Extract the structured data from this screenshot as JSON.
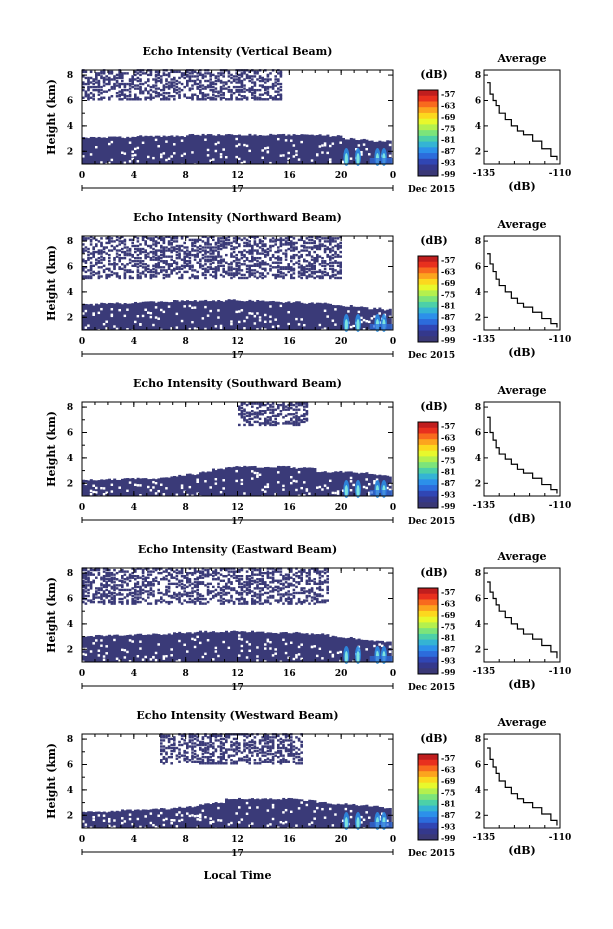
{
  "colorbar": {
    "unit": "(dB)",
    "labels": [
      "-57",
      "-63",
      "-69",
      "-75",
      "-81",
      "-87",
      "-93",
      "-99"
    ],
    "colors": [
      "#c01e1e",
      "#e8301e",
      "#f86a1e",
      "#fca41e",
      "#fcd81e",
      "#e8f82c",
      "#b4f04e",
      "#7ce47a",
      "#4cd0a8",
      "#34b4d4",
      "#2c90ea",
      "#2c6cdc",
      "#3046b4",
      "#34388c",
      "#3a3876"
    ]
  },
  "bg_color": "#3a3a78",
  "x_axis": {
    "ticks": [
      "0",
      "4",
      "8",
      "12",
      "16",
      "20",
      "0"
    ],
    "date_label": "17",
    "month_label": "Dec 2015",
    "xlabel": "Local Time"
  },
  "heatmap_y_ticks": [
    "2",
    "4",
    "6",
    "8"
  ],
  "heatmap_ylabel": "Height (km)",
  "panels": [
    {
      "title": "Echo Intensity (Vertical Beam)",
      "avg": {
        "title": "Average",
        "xlabel": "(dB)",
        "x_ticks": [
          "-135",
          "-110"
        ],
        "y_ticks": [
          "2",
          "4",
          "6",
          "8"
        ]
      }
    },
    {
      "title": "Echo Intensity (Northward Beam)",
      "avg": {
        "title": "Average",
        "xlabel": "(dB)",
        "x_ticks": [
          "-135",
          "-110"
        ],
        "y_ticks": [
          "2",
          "4",
          "6",
          "8"
        ]
      }
    },
    {
      "title": "Echo Intensity (Southward Beam)",
      "avg": {
        "title": "Average",
        "xlabel": "(dB)",
        "x_ticks": [
          "-135",
          "-110"
        ],
        "y_ticks": [
          "2",
          "4",
          "6",
          "8"
        ]
      }
    },
    {
      "title": "Echo Intensity (Eastward Beam)",
      "avg": {
        "title": "Average",
        "xlabel": "(dB)",
        "x_ticks": [
          "-135",
          "-110"
        ],
        "y_ticks": [
          "2",
          "4",
          "6",
          "8"
        ]
      }
    },
    {
      "title": "Echo Intensity (Westward Beam)",
      "avg": {
        "title": "Average",
        "xlabel": "(dB)",
        "x_ticks": [
          "-135",
          "-110"
        ],
        "y_ticks": [
          "2",
          "4",
          "6",
          "8"
        ]
      }
    }
  ],
  "chart_data": [
    {
      "type": "heatmap",
      "title": "Echo Intensity (Vertical Beam)",
      "xlabel": "",
      "ylabel": "Height (km)",
      "xlim": [
        0,
        24
      ],
      "ylim": [
        1,
        8.4
      ],
      "echo_top_km": [
        3.1,
        3.1,
        3.1,
        3.1,
        3.2,
        3.2,
        3.2,
        3.2,
        3.3,
        3.3,
        3.3,
        3.3,
        3.3,
        3.3,
        3.3,
        3.3,
        3.3,
        3.3,
        3.3,
        3.2,
        3.0,
        2.9,
        2.8,
        2.8
      ],
      "upper_band_km": [
        6.0,
        8.4
      ],
      "upper_band_hours": [
        0,
        15.5
      ]
    },
    {
      "type": "line",
      "title": "Average",
      "xlabel": "(dB)",
      "ylabel": "",
      "xlim": [
        -135,
        -110
      ],
      "ylim": [
        1,
        8.4
      ],
      "x": [
        -134,
        -133,
        -132,
        -131,
        -130,
        -128,
        -126,
        -124,
        -122,
        -119,
        -116,
        -113,
        -111
      ],
      "y": [
        7.4,
        6.5,
        6.0,
        5.6,
        5.0,
        4.5,
        4.0,
        3.6,
        3.3,
        2.8,
        2.2,
        1.6,
        1.3
      ]
    },
    {
      "type": "heatmap",
      "title": "Echo Intensity (Northward Beam)",
      "xlabel": "",
      "ylabel": "Height (km)",
      "xlim": [
        0,
        24
      ],
      "ylim": [
        1,
        8.4
      ],
      "echo_top_km": [
        3.0,
        3.1,
        3.1,
        3.1,
        3.2,
        3.2,
        3.2,
        3.3,
        3.3,
        3.3,
        3.3,
        3.4,
        3.3,
        3.3,
        3.3,
        3.2,
        3.2,
        3.1,
        3.1,
        3.0,
        2.9,
        2.8,
        2.7,
        2.6
      ],
      "upper_band_km": [
        5.0,
        8.4
      ],
      "upper_band_hours": [
        0,
        20
      ]
    },
    {
      "type": "line",
      "title": "Average",
      "xlabel": "(dB)",
      "ylabel": "",
      "xlim": [
        -135,
        -110
      ],
      "ylim": [
        1,
        8.4
      ],
      "x": [
        -134,
        -133,
        -132,
        -131,
        -130,
        -128,
        -126,
        -124,
        -122,
        -119,
        -116,
        -113,
        -111
      ],
      "y": [
        7.0,
        6.2,
        5.6,
        5.0,
        4.5,
        4.0,
        3.5,
        3.1,
        2.8,
        2.4,
        1.9,
        1.5,
        1.2
      ]
    },
    {
      "type": "heatmap",
      "title": "Echo Intensity (Southward Beam)",
      "xlabel": "",
      "ylabel": "Height (km)",
      "xlim": [
        0,
        24
      ],
      "ylim": [
        1,
        8.4
      ],
      "echo_top_km": [
        2.3,
        2.3,
        2.3,
        2.4,
        2.4,
        2.4,
        2.5,
        2.6,
        2.7,
        2.9,
        3.1,
        3.3,
        3.3,
        3.3,
        3.3,
        3.3,
        3.2,
        3.2,
        2.9,
        2.9,
        2.9,
        2.8,
        2.7,
        2.6
      ],
      "upper_band_km": [
        6.5,
        8.4
      ],
      "upper_band_hours": [
        12,
        17.5
      ]
    },
    {
      "type": "line",
      "title": "Average",
      "xlabel": "(dB)",
      "ylabel": "",
      "xlim": [
        -135,
        -110
      ],
      "ylim": [
        1,
        8.4
      ],
      "x": [
        -134,
        -133,
        -132,
        -131,
        -130,
        -128,
        -126,
        -124,
        -122,
        -119,
        -116,
        -113,
        -111
      ],
      "y": [
        7.2,
        6.0,
        5.4,
        4.8,
        4.3,
        3.9,
        3.5,
        3.1,
        2.8,
        2.4,
        1.9,
        1.5,
        1.2
      ]
    },
    {
      "type": "heatmap",
      "title": "Echo Intensity (Eastward Beam)",
      "xlabel": "",
      "ylabel": "Height (km)",
      "xlim": [
        0,
        24
      ],
      "ylim": [
        1,
        8.4
      ],
      "echo_top_km": [
        3.0,
        3.1,
        3.1,
        3.1,
        3.2,
        3.2,
        3.2,
        3.3,
        3.3,
        3.4,
        3.4,
        3.4,
        3.4,
        3.4,
        3.3,
        3.3,
        3.3,
        3.2,
        3.2,
        3.0,
        2.9,
        2.8,
        2.7,
        2.6
      ],
      "upper_band_km": [
        5.5,
        8.4
      ],
      "upper_band_hours": [
        0,
        19
      ]
    },
    {
      "type": "line",
      "title": "Average",
      "xlabel": "(dB)",
      "ylabel": "",
      "xlim": [
        -135,
        -110
      ],
      "ylim": [
        1,
        8.4
      ],
      "x": [
        -134,
        -133,
        -132,
        -131,
        -130,
        -128,
        -126,
        -124,
        -122,
        -119,
        -116,
        -113,
        -111
      ],
      "y": [
        7.3,
        6.5,
        6.0,
        5.5,
        5.0,
        4.5,
        4.0,
        3.6,
        3.2,
        2.8,
        2.3,
        1.8,
        1.3
      ]
    },
    {
      "type": "heatmap",
      "title": "Echo Intensity (Westward Beam)",
      "xlabel": "",
      "ylabel": "Height (km)",
      "xlim": [
        0,
        24
      ],
      "ylim": [
        1,
        8.4
      ],
      "echo_top_km": [
        2.3,
        2.3,
        2.3,
        2.4,
        2.4,
        2.5,
        2.5,
        2.6,
        2.7,
        2.9,
        3.0,
        3.3,
        3.3,
        3.3,
        3.3,
        3.3,
        3.3,
        3.2,
        3.0,
        2.9,
        2.9,
        2.8,
        2.7,
        2.6
      ],
      "upper_band_km": [
        6.0,
        8.4
      ],
      "upper_band_hours": [
        6,
        17
      ]
    },
    {
      "type": "line",
      "title": "Average",
      "xlabel": "(dB)",
      "ylabel": "",
      "xlim": [
        -135,
        -110
      ],
      "ylim": [
        1,
        8.4
      ],
      "x": [
        -134,
        -133,
        -132,
        -131,
        -130,
        -128,
        -126,
        -124,
        -122,
        -119,
        -116,
        -113,
        -111
      ],
      "y": [
        7.3,
        6.4,
        5.8,
        5.3,
        4.7,
        4.2,
        3.7,
        3.3,
        3.0,
        2.6,
        2.1,
        1.6,
        1.2
      ]
    }
  ]
}
